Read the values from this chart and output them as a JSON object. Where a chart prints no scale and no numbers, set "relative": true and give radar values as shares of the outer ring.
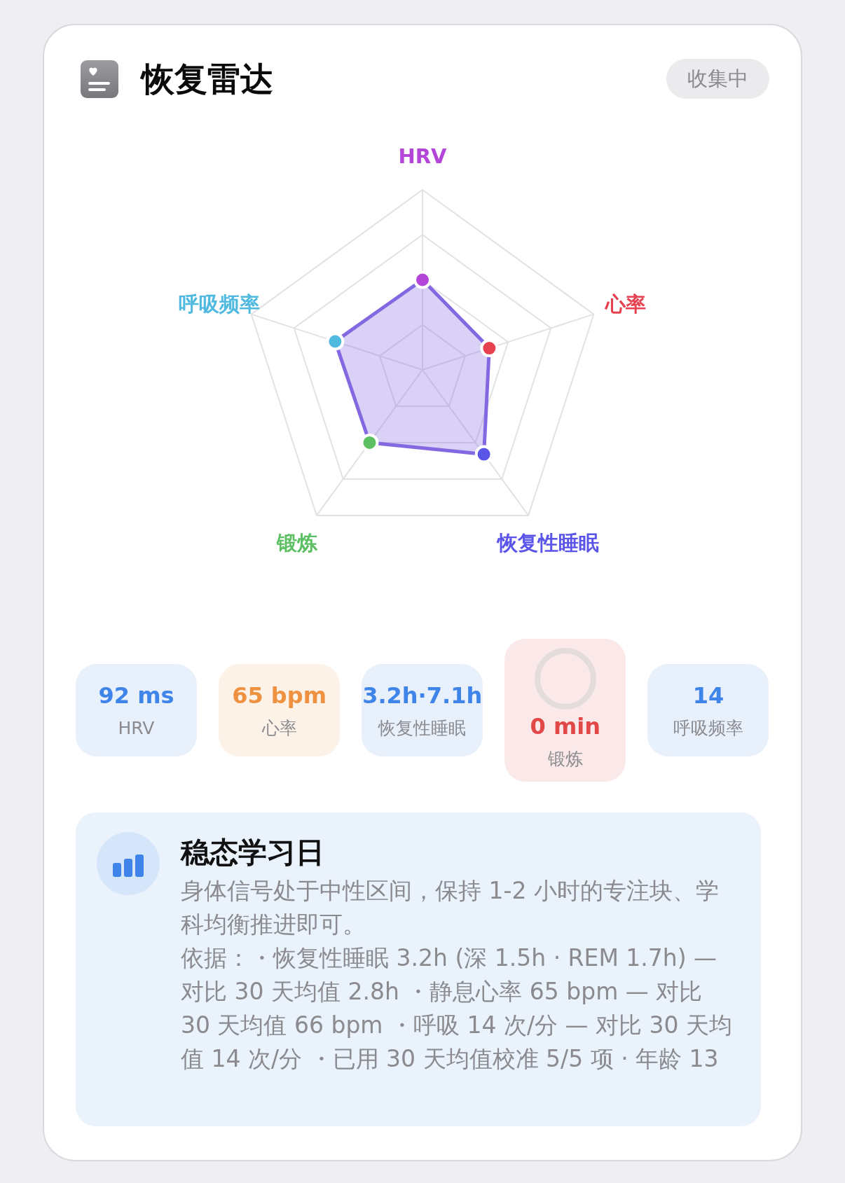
{
  "chart_data": [
    {
      "type": "radar",
      "title": "恢复雷达",
      "categories": [
        "HRV",
        "心率",
        "恢复性睡眠",
        "锻炼",
        "呼吸频率"
      ],
      "series": [
        {
          "color": "#8468e2",
          "values": [
            0.5,
            0.39,
            0.58,
            0.5,
            0.51
          ]
        }
      ],
      "colors": [
        "#b345d8",
        "#e5414f",
        "#5a55e8",
        "#5cbf62",
        "#4fb9e0"
      ],
      "relative": true,
      "grid": true,
      "marker": "circle",
      "annotations": [
        "收集中"
      ]
    },
    {
      "type": "other",
      "title": "稳态学习日",
      "colors": [
        "#3f84e8",
        "#ee9140",
        "#3f84e8",
        "#e24848",
        "#3f84e8"
      ],
      "annotations": [
        "92 ms",
        "HRV",
        "65 bpm",
        "心率",
        "3.2h·7.1h",
        "恢复性睡眠",
        "0 min",
        "锻炼",
        "14",
        "呼吸频率",
        "身体信号处于中性区间，保持 1-2 小时的专注块、学科均衡推进即可。",
        "依据：・恢复性睡眠 3.2h (深 1.5h · REM 1.7h) — 对比 30 天均值 2.8h ・静息心率 65 bpm — 对比 30 天均值 66 bpm ・呼吸 14 次/分 — 对比 30 天均值 14 次/分 ・已用 30 天均值校准 5/5 项 · 年龄 13"
      ]
    }
  ]
}
